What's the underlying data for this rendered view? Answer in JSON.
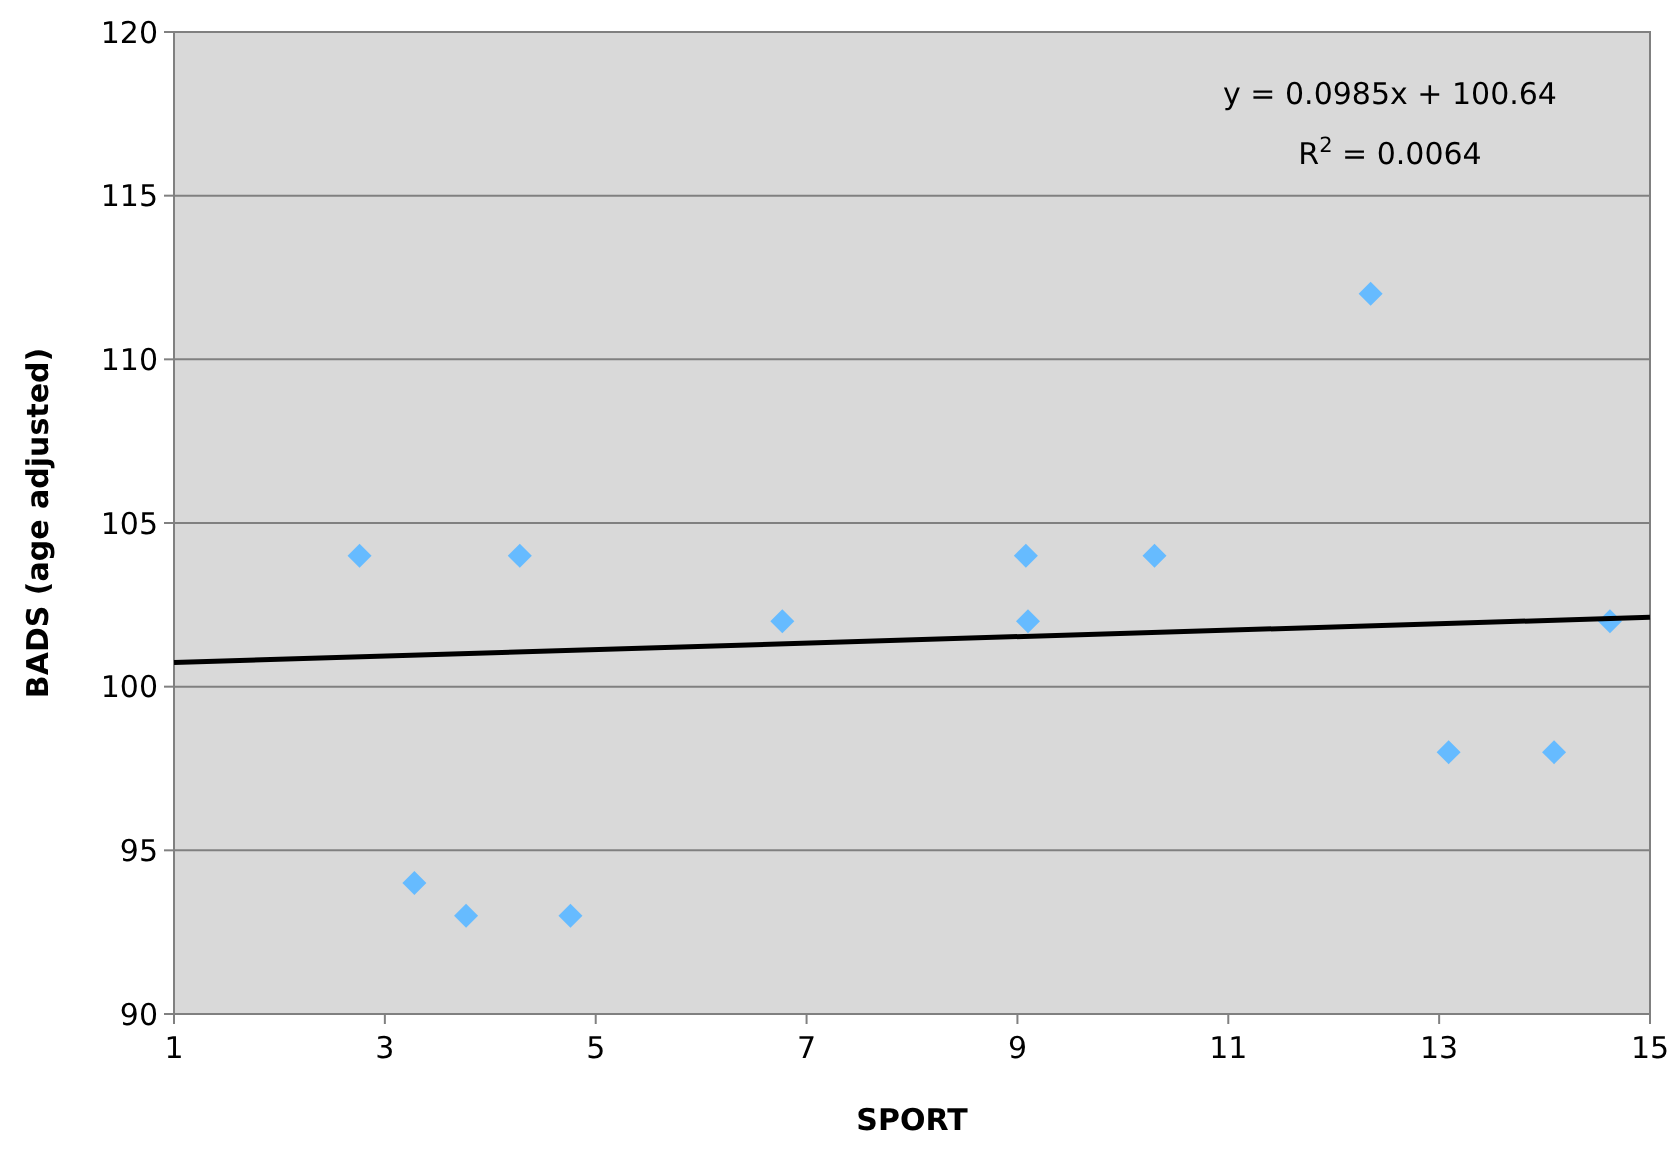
{
  "chart_data": {
    "type": "scatter",
    "xlabel": "SPORT",
    "ylabel": "BADS (age adjusted)",
    "xlim": [
      1,
      15
    ],
    "xticks": [
      1,
      3,
      5,
      7,
      9,
      11,
      13,
      15
    ],
    "ylim": [
      90,
      120
    ],
    "yticks": [
      90,
      95,
      100,
      105,
      110,
      115,
      120
    ],
    "grid": "y",
    "marker": "diamond",
    "series": [
      {
        "color": "#66bbff",
        "x": [
          2.76,
          3.28,
          3.77,
          4.28,
          4.76,
          6.77,
          9.08,
          9.1,
          10.3,
          12.35,
          13.09,
          14.09,
          14.62
        ],
        "values": [
          104,
          94,
          93,
          104,
          93,
          102,
          104,
          102,
          104,
          112,
          98,
          98,
          102
        ]
      },
      {
        "type": "line",
        "color": "#000000",
        "x": [
          1,
          15
        ],
        "values": [
          100.74,
          102.12
        ],
        "marker": "none"
      }
    ],
    "annotations": [
      "y = 0.0985x + 100.64",
      "R$^{2}$ = 0.0064"
    ]
  }
}
